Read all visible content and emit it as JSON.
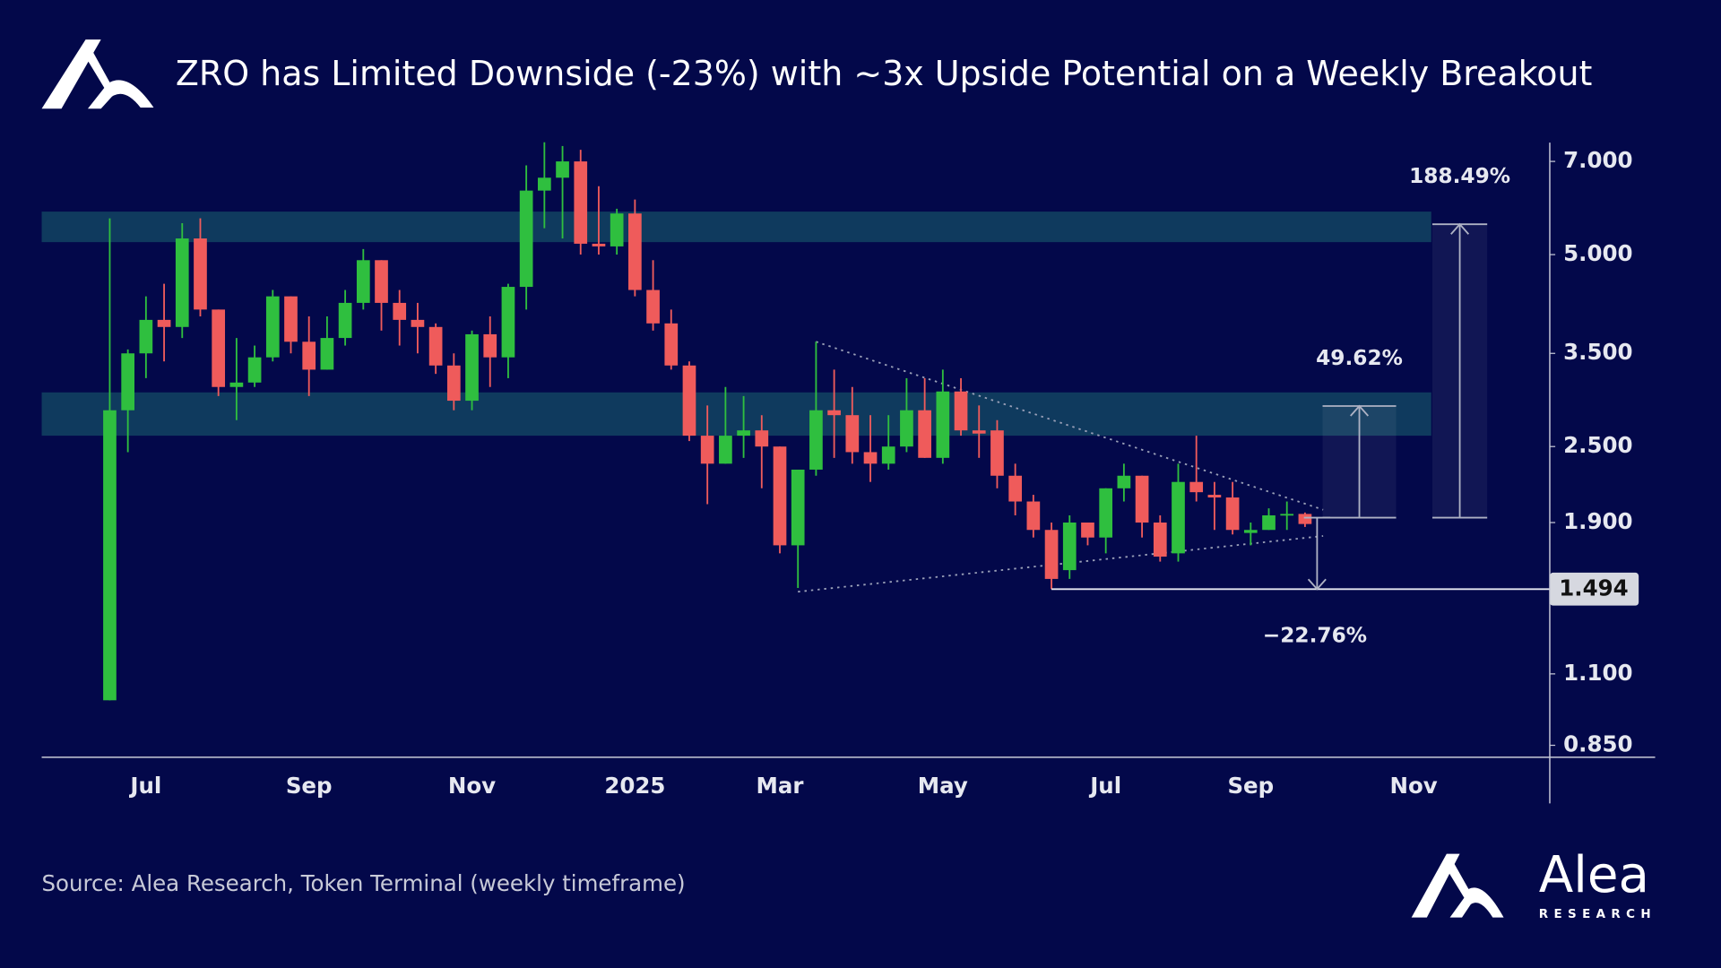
{
  "chart_data": {
    "type": "candlestick",
    "title": "ZRO has Limited Downside (-23%) with ~3x Upside Potential on a Weekly Breakout",
    "source": "Source: Alea Research, Token Terminal (weekly timeframe)",
    "brand": {
      "name": "Alea",
      "tagline": "RESEARCH"
    },
    "categories": [
      null,
      null,
      "Jul",
      null,
      null,
      null,
      null,
      null,
      null,
      null,
      null,
      "Sep",
      null,
      null,
      null,
      null,
      null,
      null,
      null,
      null,
      "Nov",
      null,
      null,
      null,
      null,
      null,
      null,
      null,
      null,
      "2025",
      null,
      null,
      null,
      null,
      null,
      null,
      null,
      "Mar",
      null,
      null,
      null,
      null,
      null,
      null,
      null,
      null,
      "May",
      null,
      null,
      null,
      null,
      null,
      null,
      null,
      null,
      "Jul",
      null,
      null,
      null,
      null,
      null,
      null,
      null,
      "Sep",
      null,
      null,
      null,
      null,
      null,
      null,
      null,
      null,
      "Nov"
    ],
    "open": [
      1.0,
      2.85,
      3.5,
      3.95,
      3.85,
      5.3,
      4.1,
      3.1,
      3.15,
      3.45,
      4.3,
      3.65,
      3.3,
      3.7,
      4.2,
      4.9,
      4.2,
      3.95,
      3.85,
      3.35,
      2.95,
      3.75,
      3.45,
      4.45,
      6.3,
      6.6,
      7.0,
      5.2,
      5.15,
      5.8,
      4.4,
      3.9,
      3.35,
      2.6,
      2.35,
      2.6,
      2.65,
      2.5,
      1.75,
      2.3,
      2.85,
      2.8,
      2.45,
      2.35,
      2.5,
      2.85,
      2.4,
      3.05,
      2.65,
      2.65,
      2.25,
      2.05,
      1.85,
      1.6,
      1.9,
      1.8,
      2.15,
      2.25,
      1.9,
      1.7,
      2.2,
      2.1,
      2.08,
      1.83,
      1.85,
      1.95,
      1.96,
      null,
      null,
      null,
      null,
      null,
      null
    ],
    "high": [
      5.7,
      3.55,
      4.3,
      4.5,
      5.6,
      5.7,
      4.1,
      3.7,
      3.6,
      4.4,
      4.3,
      4.0,
      4.0,
      4.4,
      5.1,
      4.9,
      4.4,
      4.2,
      3.9,
      3.5,
      3.8,
      4.0,
      4.5,
      6.9,
      7.5,
      7.4,
      7.3,
      6.4,
      5.9,
      6.1,
      4.9,
      4.1,
      3.4,
      2.9,
      3.1,
      3.0,
      2.8,
      2.5,
      2.3,
      3.65,
      3.3,
      3.1,
      2.8,
      2.8,
      3.2,
      3.2,
      3.3,
      3.2,
      2.9,
      2.75,
      2.35,
      2.1,
      1.9,
      1.95,
      1.9,
      2.15,
      2.35,
      2.25,
      1.95,
      2.35,
      2.6,
      2.2,
      2.2,
      1.9,
      2.0,
      2.05,
      1.97,
      null,
      null,
      null,
      null,
      null,
      null
    ],
    "low": [
      1.0,
      2.45,
      3.2,
      3.4,
      3.7,
      4.0,
      3.0,
      2.75,
      3.1,
      3.4,
      3.5,
      3.0,
      3.3,
      3.6,
      4.1,
      3.8,
      3.6,
      3.5,
      3.25,
      2.85,
      2.85,
      3.1,
      3.2,
      4.1,
      5.5,
      5.3,
      5.0,
      5.0,
      5.0,
      4.3,
      3.8,
      3.3,
      2.55,
      2.03,
      2.35,
      2.4,
      2.15,
      1.7,
      1.5,
      2.25,
      2.4,
      2.35,
      2.2,
      2.3,
      2.45,
      2.4,
      2.35,
      2.6,
      2.4,
      2.15,
      1.95,
      1.8,
      1.494,
      1.55,
      1.75,
      1.7,
      2.05,
      1.8,
      1.65,
      1.65,
      2.05,
      1.85,
      1.82,
      1.75,
      1.85,
      1.85,
      1.87,
      null,
      null,
      null,
      null,
      null,
      null
    ],
    "close": [
      2.85,
      3.5,
      3.95,
      3.85,
      5.3,
      4.1,
      3.1,
      3.15,
      3.45,
      4.3,
      3.65,
      3.3,
      3.7,
      4.2,
      4.9,
      4.2,
      3.95,
      3.85,
      3.35,
      2.95,
      3.75,
      3.45,
      4.45,
      6.3,
      6.6,
      7.0,
      5.2,
      5.15,
      5.8,
      4.4,
      3.9,
      3.35,
      2.6,
      2.35,
      2.6,
      2.65,
      2.5,
      1.75,
      2.3,
      2.85,
      2.8,
      2.45,
      2.35,
      2.5,
      2.85,
      2.4,
      3.05,
      2.65,
      2.62,
      2.25,
      2.05,
      1.85,
      1.55,
      1.9,
      1.8,
      2.15,
      2.25,
      1.9,
      1.68,
      2.2,
      2.12,
      2.08,
      1.85,
      1.85,
      1.95,
      1.96,
      1.89,
      null,
      null,
      null,
      null,
      null,
      null
    ],
    "up_color": "#2fbf3f",
    "down_color": "#ef5b5b",
    "log_scale": true,
    "ylim": [
      0.814,
      7.49
    ],
    "yticks": [
      {
        "value": 7,
        "label": "7.000"
      },
      {
        "value": 5,
        "label": "5.000"
      },
      {
        "value": 3.5,
        "label": "3.500"
      },
      {
        "value": 2.5,
        "label": "2.500"
      },
      {
        "value": 1.9,
        "label": "1.900"
      },
      {
        "value": 1.1,
        "label": "1.100"
      },
      {
        "value": 0.85,
        "label": "0.850"
      }
    ],
    "zones": [
      {
        "low": 5.23,
        "high": 5.84
      },
      {
        "low": 2.6,
        "high": 3.04
      }
    ],
    "zone_color": "#0f3a5e",
    "trendlines": [
      {
        "start": [
          39,
          3.65
        ],
        "end": [
          67,
          1.99
        ]
      },
      {
        "start": [
          38,
          1.48
        ],
        "end": [
          67,
          1.81
        ]
      }
    ],
    "price_line": {
      "value": 1.494,
      "label": "1.494",
      "start": 52
    },
    "measurements": [
      {
        "from": 1.934,
        "to": 5.579,
        "label": "188.49%"
      },
      {
        "from": 1.934,
        "to": 2.894,
        "label": "49.62%"
      },
      {
        "from": 1.934,
        "to": 1.494,
        "label": "−22.76%"
      }
    ]
  }
}
